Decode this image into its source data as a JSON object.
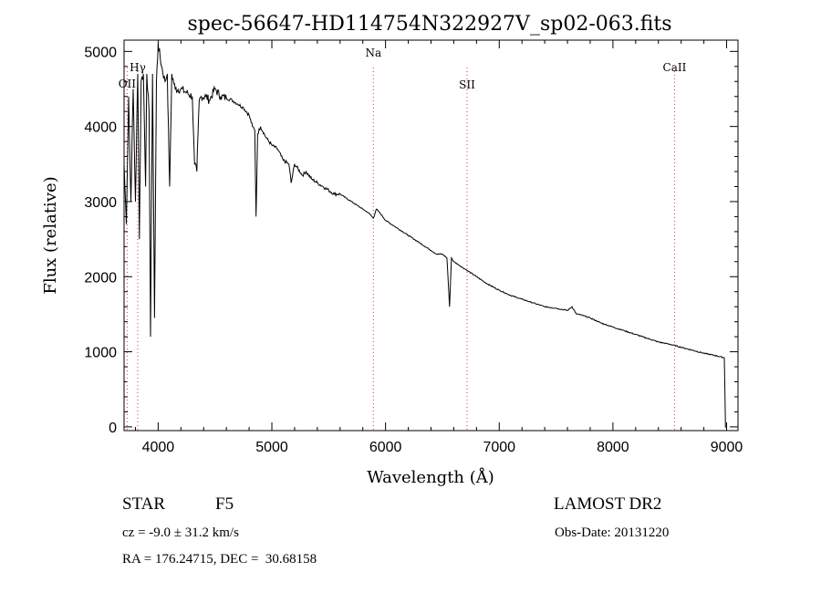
{
  "chart_data": {
    "type": "line",
    "title": "spec-56647-HD114754N322927V_sp02-063.fits",
    "xlabel": "Wavelength (Å)",
    "ylabel": "Flux (relative)",
    "xlim": [
      3700,
      9100
    ],
    "ylim": [
      -50,
      5150
    ],
    "xticks": [
      4000,
      5000,
      6000,
      7000,
      8000,
      9000
    ],
    "yticks": [
      0,
      1000,
      2000,
      3000,
      4000,
      5000
    ],
    "grid": false,
    "line_color": "#000000",
    "marker_color": "#d04040",
    "line_markers": [
      {
        "label": "OII",
        "x": 3727
      },
      {
        "label": "Hγ",
        "x": 3820
      },
      {
        "label": "Na",
        "x": 5893
      },
      {
        "label": "SII",
        "x": 6717
      },
      {
        "label": "CaII",
        "x": 8542
      }
    ],
    "spectrum": {
      "x": [
        3700,
        3720,
        3740,
        3760,
        3780,
        3800,
        3820,
        3835,
        3850,
        3870,
        3889,
        3900,
        3920,
        3933,
        3950,
        3968,
        3985,
        4000,
        4030,
        4060,
        4080,
        4101,
        4120,
        4150,
        4200,
        4250,
        4300,
        4320,
        4340,
        4361,
        4380,
        4420,
        4450,
        4500,
        4550,
        4600,
        4650,
        4700,
        4750,
        4800,
        4830,
        4850,
        4861,
        4875,
        4900,
        4950,
        5000,
        5050,
        5100,
        5150,
        5170,
        5200,
        5270,
        5300,
        5350,
        5400,
        5450,
        5500,
        5550,
        5600,
        5650,
        5700,
        5750,
        5800,
        5850,
        5893,
        5920,
        5950,
        6000,
        6100,
        6200,
        6300,
        6400,
        6450,
        6500,
        6540,
        6563,
        6580,
        6600,
        6700,
        6800,
        6900,
        7000,
        7100,
        7200,
        7300,
        7400,
        7500,
        7600,
        7640,
        7680,
        7700,
        7800,
        7900,
        8000,
        8100,
        8200,
        8300,
        8400,
        8500,
        8600,
        8700,
        8800,
        8900,
        8980,
        8990
      ],
      "y": [
        3500,
        2700,
        4400,
        3000,
        4500,
        3000,
        4700,
        2500,
        4600,
        4700,
        3200,
        4700,
        4200,
        1200,
        4700,
        1450,
        4600,
        5100,
        4800,
        4600,
        4700,
        3200,
        4700,
        4500,
        4500,
        4450,
        4400,
        3500,
        3400,
        4350,
        4400,
        4400,
        4350,
        4500,
        4400,
        4380,
        4350,
        4300,
        4250,
        4150,
        4000,
        3950,
        2800,
        3900,
        4000,
        3850,
        3750,
        3700,
        3550,
        3500,
        3250,
        3500,
        3350,
        3400,
        3300,
        3250,
        3200,
        3150,
        3100,
        3100,
        3050,
        3000,
        2950,
        2900,
        2850,
        2780,
        2900,
        2850,
        2750,
        2650,
        2550,
        2450,
        2350,
        2300,
        2300,
        2250,
        1600,
        2250,
        2200,
        2100,
        2000,
        1900,
        1820,
        1750,
        1700,
        1650,
        1600,
        1580,
        1550,
        1600,
        1500,
        1500,
        1450,
        1380,
        1330,
        1280,
        1230,
        1180,
        1130,
        1100,
        1060,
        1020,
        980,
        950,
        920,
        -10
      ]
    }
  },
  "footer": {
    "object_type": "STAR",
    "spectral_class": "F5",
    "survey": "LAMOST DR2",
    "velocity": "cz = -9.0 ± 31.2 km/s",
    "obs_date": "Obs-Date: 20131220",
    "coords": "RA = 176.24715, DEC =  30.68158"
  }
}
